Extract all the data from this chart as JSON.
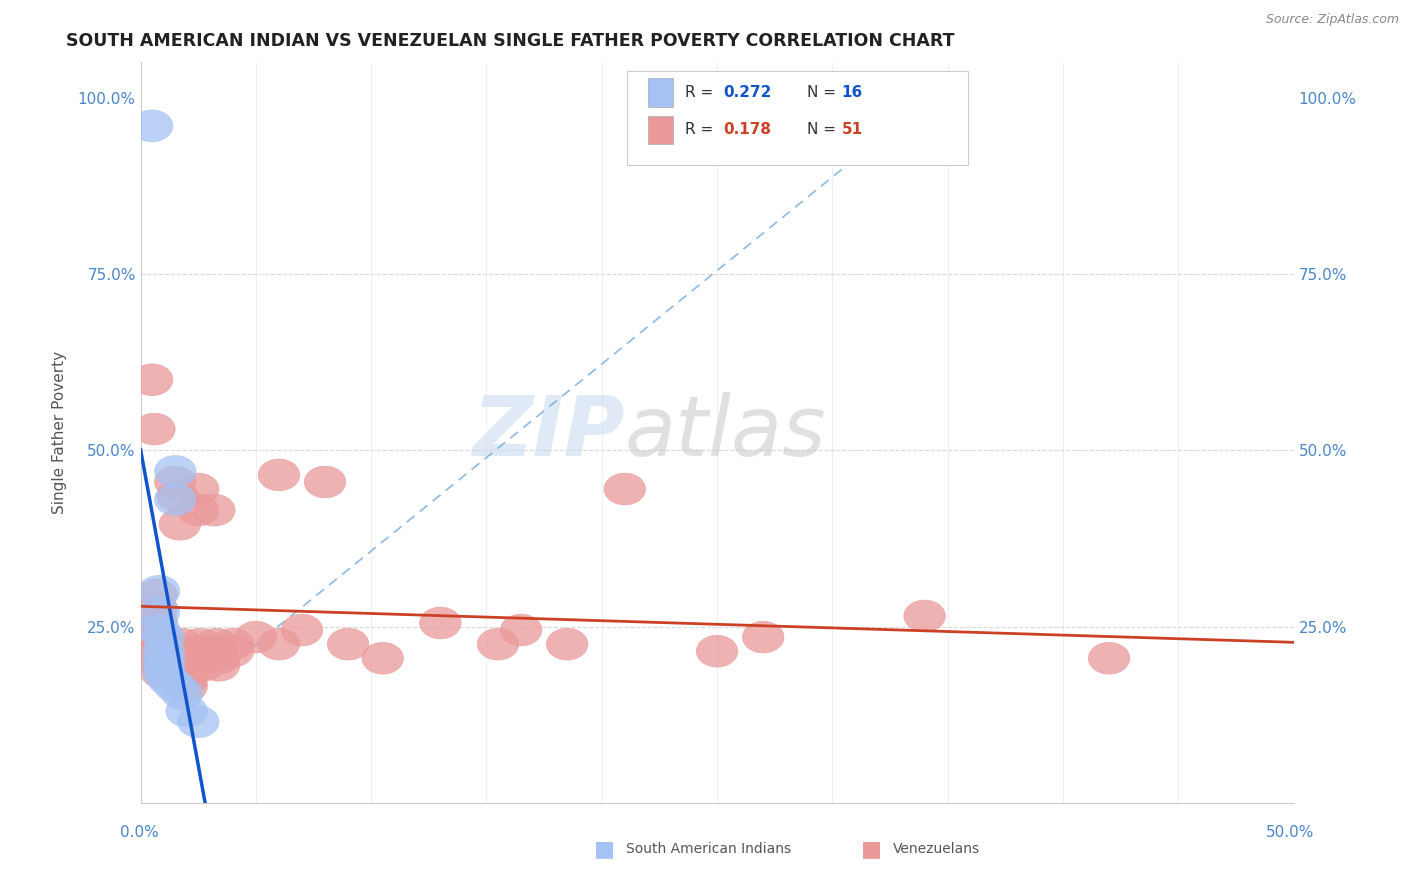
{
  "title": "SOUTH AMERICAN INDIAN VS VENEZUELAN SINGLE FATHER POVERTY CORRELATION CHART",
  "source": "Source: ZipAtlas.com",
  "ylabel": "Single Father Poverty",
  "yticks": [
    0.0,
    0.25,
    0.5,
    0.75,
    1.0
  ],
  "ytick_labels_left": [
    "",
    "25.0%",
    "50.0%",
    "75.0%",
    "100.0%"
  ],
  "ytick_labels_right": [
    "",
    "25.0%",
    "50.0%",
    "75.0%",
    "100.0%"
  ],
  "xlim": [
    0.0,
    0.5
  ],
  "ylim": [
    0.0,
    1.05
  ],
  "legend_r1": "0.272",
  "legend_n1": "16",
  "legend_r2": "0.178",
  "legend_n2": "51",
  "watermark_zip": "ZIP",
  "watermark_atlas": "atlas",
  "blue_color": "#a4c2f4",
  "pink_color": "#ea9999",
  "blue_line_color": "#1155cc",
  "pink_line_color": "#cc4125",
  "blue_dashed_color": "#6fa8dc",
  "background_color": "#ffffff",
  "grid_color": "#d0d0d0",
  "blue_scatter": [
    [
      0.005,
      0.96
    ],
    [
      0.015,
      0.47
    ],
    [
      0.015,
      0.43
    ],
    [
      0.008,
      0.3
    ],
    [
      0.008,
      0.27
    ],
    [
      0.008,
      0.245
    ],
    [
      0.01,
      0.235
    ],
    [
      0.01,
      0.215
    ],
    [
      0.01,
      0.205
    ],
    [
      0.01,
      0.195
    ],
    [
      0.01,
      0.185
    ],
    [
      0.012,
      0.175
    ],
    [
      0.015,
      0.165
    ],
    [
      0.018,
      0.155
    ],
    [
      0.02,
      0.13
    ],
    [
      0.025,
      0.115
    ]
  ],
  "pink_scatter": [
    [
      0.005,
      0.6
    ],
    [
      0.006,
      0.53
    ],
    [
      0.007,
      0.295
    ],
    [
      0.007,
      0.275
    ],
    [
      0.007,
      0.255
    ],
    [
      0.007,
      0.245
    ],
    [
      0.007,
      0.235
    ],
    [
      0.008,
      0.225
    ],
    [
      0.008,
      0.215
    ],
    [
      0.009,
      0.205
    ],
    [
      0.009,
      0.195
    ],
    [
      0.009,
      0.185
    ],
    [
      0.015,
      0.455
    ],
    [
      0.016,
      0.435
    ],
    [
      0.017,
      0.395
    ],
    [
      0.018,
      0.225
    ],
    [
      0.018,
      0.215
    ],
    [
      0.019,
      0.205
    ],
    [
      0.019,
      0.195
    ],
    [
      0.019,
      0.185
    ],
    [
      0.02,
      0.175
    ],
    [
      0.02,
      0.165
    ],
    [
      0.025,
      0.445
    ],
    [
      0.025,
      0.415
    ],
    [
      0.026,
      0.225
    ],
    [
      0.026,
      0.215
    ],
    [
      0.027,
      0.205
    ],
    [
      0.027,
      0.195
    ],
    [
      0.032,
      0.415
    ],
    [
      0.033,
      0.225
    ],
    [
      0.033,
      0.215
    ],
    [
      0.034,
      0.205
    ],
    [
      0.034,
      0.195
    ],
    [
      0.04,
      0.225
    ],
    [
      0.04,
      0.215
    ],
    [
      0.05,
      0.235
    ],
    [
      0.06,
      0.465
    ],
    [
      0.06,
      0.225
    ],
    [
      0.07,
      0.245
    ],
    [
      0.08,
      0.455
    ],
    [
      0.09,
      0.225
    ],
    [
      0.105,
      0.205
    ],
    [
      0.13,
      0.255
    ],
    [
      0.155,
      0.225
    ],
    [
      0.165,
      0.245
    ],
    [
      0.185,
      0.225
    ],
    [
      0.21,
      0.445
    ],
    [
      0.25,
      0.215
    ],
    [
      0.27,
      0.235
    ],
    [
      0.34,
      0.265
    ],
    [
      0.42,
      0.205
    ]
  ],
  "ref_line_x": [
    0.02,
    0.35
  ],
  "ref_line_y": [
    0.145,
    1.02
  ]
}
